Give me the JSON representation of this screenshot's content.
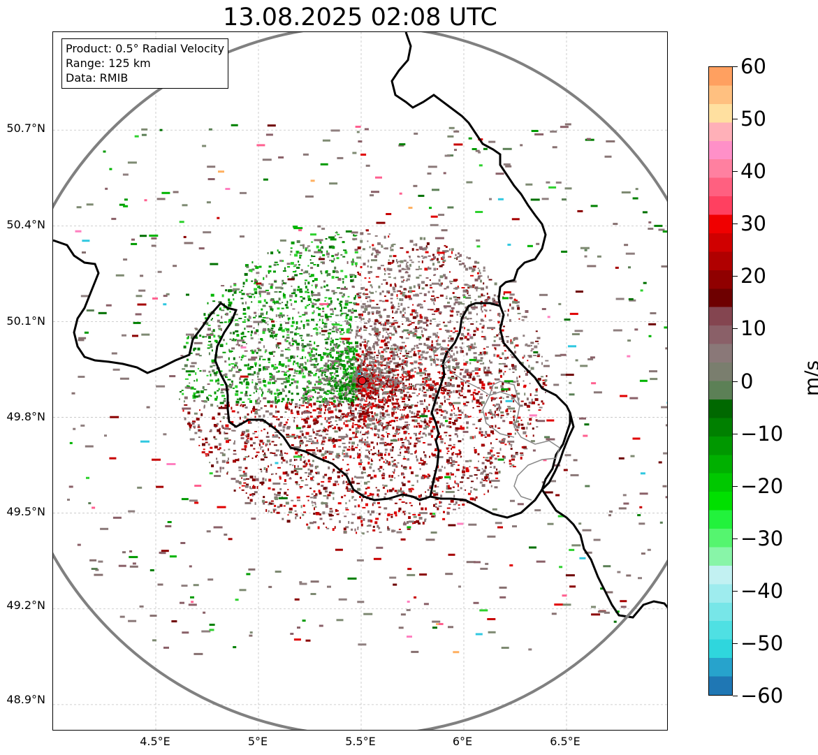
{
  "title": "13.08.2025 02:08 UTC",
  "info": {
    "product": "Product: 0.5° Radial Velocity",
    "range": "Range: 125 km",
    "data": "Data: RMIB"
  },
  "axes": {
    "y_ticks": [
      "50.7°N",
      "50.4°N",
      "50.1°N",
      "49.8°N",
      "49.5°N",
      "49.2°N",
      "48.9°N"
    ],
    "x_ticks": [
      "4.5°E",
      "5°E",
      "5.5°E",
      "6°E",
      "6.5°E"
    ]
  },
  "radar": {
    "site_lon": 5.505,
    "site_lat": 49.915,
    "range_km": 125,
    "site_color": "#e8141e"
  },
  "colorbar": {
    "unit": "m/s",
    "min": -60,
    "max": 60,
    "ticks": [
      "60",
      "50",
      "40",
      "30",
      "20",
      "10",
      "0",
      "−10",
      "−20",
      "−30",
      "−40",
      "−50",
      "−60"
    ],
    "colors": [
      "#1f77b4",
      "#27a3cc",
      "#2fd6dd",
      "#4fe0e3",
      "#77e6e8",
      "#9eecee",
      "#c2f1f2",
      "#88f5a8",
      "#55f56f",
      "#22f23c",
      "#00e000",
      "#00c800",
      "#00b000",
      "#009800",
      "#008000",
      "#006800",
      "#5c8056",
      "#7a7e6e",
      "#8a7878",
      "#8a6068",
      "#844550",
      "#6e0000",
      "#900000",
      "#b00000",
      "#d00000",
      "#f00000",
      "#ff4060",
      "#ff6080",
      "#ff80a0",
      "#ff90c8",
      "#ffb0b8",
      "#ffe0a0",
      "#ffc080",
      "#ffa060"
    ]
  }
}
